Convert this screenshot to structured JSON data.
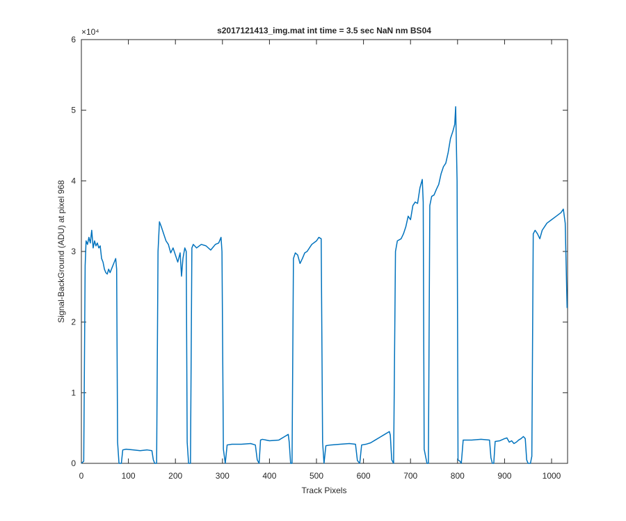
{
  "chart_data": {
    "type": "line",
    "title": "s2017121413_img.mat int time = 3.5 sec  NaN nm BS04",
    "xlabel": "Track Pixels",
    "ylabel": "Signal-BackGround (ADU) at pixel 968",
    "y_exponent": "×10⁴",
    "color": "#0072BD",
    "xlim": [
      0,
      1034
    ],
    "ylim": [
      0,
      60000
    ],
    "xticks": [
      0,
      100,
      200,
      300,
      400,
      500,
      600,
      700,
      800,
      900,
      1000
    ],
    "yticks": [
      {
        "value": 0,
        "label": "0"
      },
      {
        "value": 10000,
        "label": "1"
      },
      {
        "value": 20000,
        "label": "2"
      },
      {
        "value": 30000,
        "label": "3"
      },
      {
        "value": 40000,
        "label": "4"
      },
      {
        "value": 50000,
        "label": "5"
      },
      {
        "value": 60000,
        "label": "6"
      }
    ],
    "x": [
      0,
      5,
      8,
      10,
      13,
      16,
      19,
      22,
      25,
      28,
      31,
      34,
      37,
      40,
      43,
      46,
      49,
      52,
      55,
      58,
      61,
      64,
      67,
      70,
      73,
      75,
      77,
      80,
      85,
      88,
      95,
      110,
      125,
      140,
      150,
      153,
      156,
      160,
      163,
      166,
      170,
      175,
      180,
      185,
      190,
      195,
      200,
      205,
      210,
      213,
      216,
      220,
      223,
      225,
      228,
      232,
      235,
      238,
      245,
      255,
      265,
      275,
      285,
      292,
      297,
      299,
      302,
      306,
      310,
      320,
      340,
      360,
      370,
      374,
      378,
      381,
      385,
      400,
      420,
      430,
      440,
      442,
      445,
      448,
      451,
      455,
      460,
      465,
      470,
      475,
      480,
      490,
      500,
      505,
      510,
      513,
      516,
      520,
      530,
      550,
      570,
      583,
      587,
      592,
      596,
      605,
      615,
      625,
      635,
      645,
      655,
      657,
      660,
      664,
      668,
      672,
      680,
      685,
      690,
      695,
      700,
      705,
      710,
      715,
      720,
      725,
      727,
      729,
      735,
      738,
      741,
      745,
      750,
      755,
      760,
      765,
      770,
      775,
      780,
      785,
      790,
      794,
      796,
      799,
      801,
      805,
      808,
      812,
      830,
      850,
      868,
      871,
      874,
      877,
      880,
      890,
      900,
      905,
      910,
      915,
      920,
      925,
      930,
      935,
      940,
      944,
      947,
      950,
      955,
      958,
      961,
      965,
      970,
      975,
      980,
      985,
      990,
      1000,
      1010,
      1020,
      1025,
      1029,
      1033
    ],
    "values": [
      0,
      300,
      28000,
      31500,
      31000,
      32000,
      31200,
      33000,
      30500,
      31500,
      30800,
      31200,
      30500,
      30800,
      29000,
      28500,
      27500,
      27000,
      26800,
      27500,
      27000,
      27500,
      28000,
      28500,
      29000,
      27500,
      3000,
      0,
      0,
      1900,
      2000,
      1900,
      1800,
      1900,
      1800,
      500,
      0,
      0,
      30000,
      34200,
      33500,
      32500,
      31500,
      31000,
      29800,
      30500,
      29500,
      28500,
      29800,
      26500,
      29000,
      30500,
      30000,
      3000,
      0,
      0,
      30500,
      31000,
      30500,
      31000,
      30800,
      30200,
      31000,
      31200,
      32000,
      30000,
      2000,
      0,
      2600,
      2700,
      2700,
      2800,
      2600,
      500,
      0,
      3300,
      3400,
      3200,
      3300,
      3700,
      4100,
      3000,
      0,
      0,
      29000,
      29800,
      29500,
      28300,
      29000,
      29800,
      30000,
      31000,
      31500,
      32000,
      31800,
      3000,
      0,
      2500,
      2600,
      2700,
      2800,
      2700,
      400,
      0,
      2600,
      2700,
      2900,
      3300,
      3700,
      4100,
      4500,
      4000,
      500,
      0,
      30000,
      31500,
      31800,
      32500,
      33500,
      35000,
      34500,
      36500,
      37000,
      36800,
      39000,
      40200,
      37000,
      2000,
      0,
      0,
      36500,
      37800,
      38000,
      38800,
      39500,
      41000,
      42000,
      42500,
      44000,
      46000,
      47000,
      48000,
      50500,
      40000,
      500,
      300,
      0,
      3300,
      3300,
      3400,
      3300,
      800,
      0,
      0,
      3100,
      3200,
      3500,
      3600,
      3000,
      3200,
      2800,
      3000,
      3300,
      3500,
      3800,
      3500,
      500,
      0,
      0,
      1000,
      32500,
      33000,
      32500,
      31800,
      33000,
      33500,
      34000,
      34500,
      35000,
      35500,
      36000,
      34000,
      22000
    ]
  }
}
